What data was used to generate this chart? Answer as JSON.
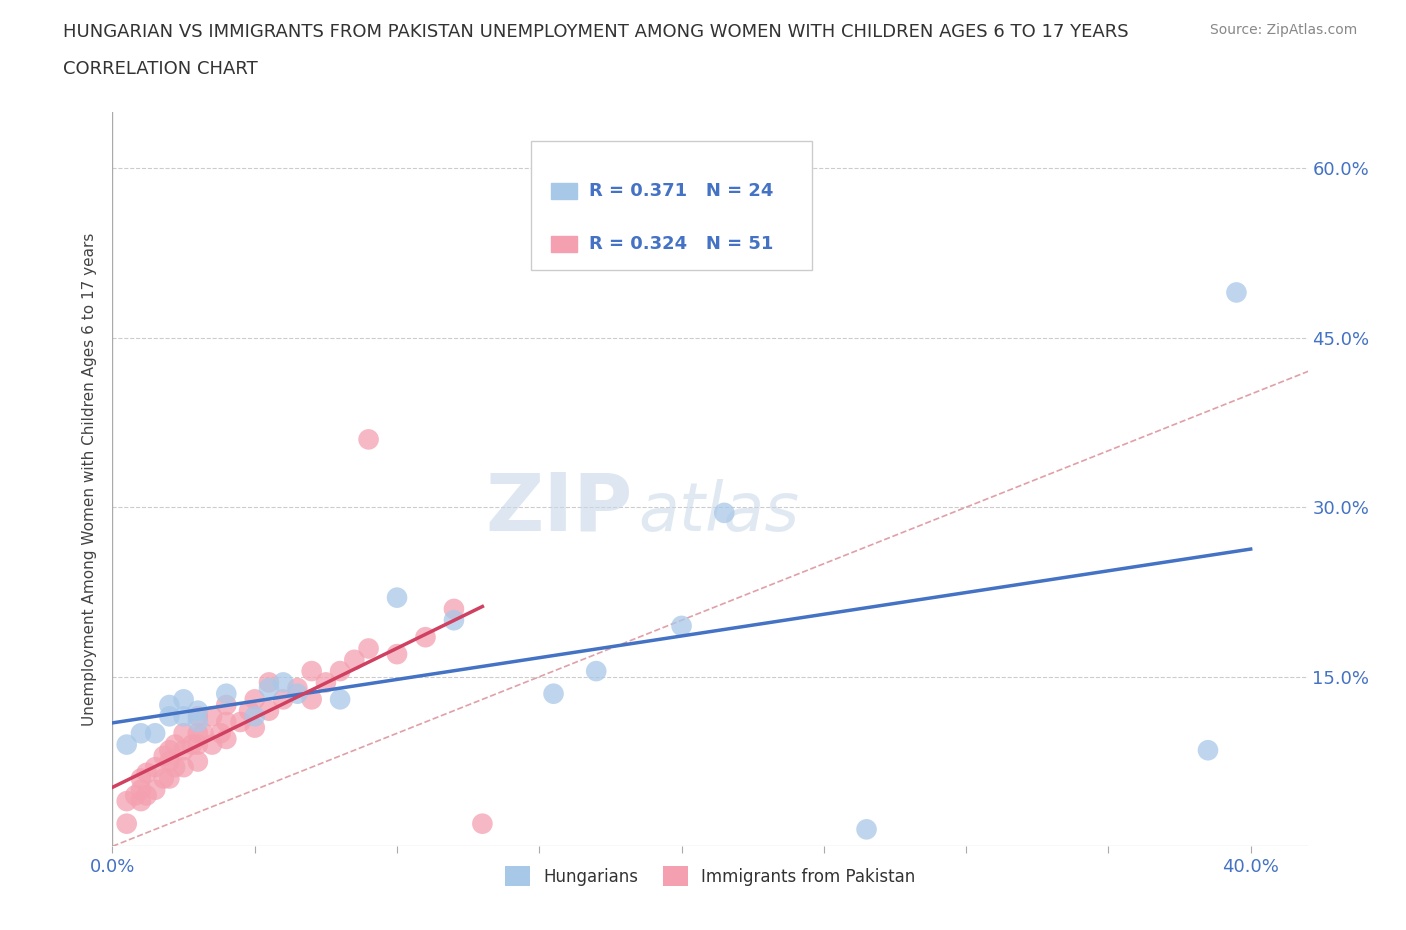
{
  "title_line1": "HUNGARIAN VS IMMIGRANTS FROM PAKISTAN UNEMPLOYMENT AMONG WOMEN WITH CHILDREN AGES 6 TO 17 YEARS",
  "title_line2": "CORRELATION CHART",
  "source": "Source: ZipAtlas.com",
  "ylabel": "Unemployment Among Women with Children Ages 6 to 17 years",
  "xlim": [
    0.0,
    0.42
  ],
  "ylim": [
    0.0,
    0.65
  ],
  "xtick_positions": [
    0.0,
    0.05,
    0.1,
    0.15,
    0.2,
    0.25,
    0.3,
    0.35,
    0.4
  ],
  "ytick_positions": [
    0.0,
    0.15,
    0.3,
    0.45,
    0.6
  ],
  "ytick_labels": [
    "",
    "15.0%",
    "30.0%",
    "45.0%",
    "60.0%"
  ],
  "hungarian_R": 0.371,
  "hungarian_N": 24,
  "pakistan_R": 0.324,
  "pakistan_N": 51,
  "legend_label1": "Hungarians",
  "legend_label2": "Immigrants from Pakistan",
  "color_hungarian": "#a8c8e8",
  "color_pakistan": "#f4a0b0",
  "color_trendline_hungarian": "#4472c4",
  "color_trendline_pakistan": "#d04060",
  "color_diagonal": "#e0a0a8",
  "watermark_zip": "ZIP",
  "watermark_atlas": "atlas",
  "background_color": "#ffffff",
  "hungarian_x": [
    0.005,
    0.01,
    0.015,
    0.02,
    0.02,
    0.025,
    0.025,
    0.03,
    0.03,
    0.04,
    0.05,
    0.055,
    0.06,
    0.065,
    0.08,
    0.1,
    0.12,
    0.155,
    0.17,
    0.2,
    0.215,
    0.265,
    0.385,
    0.395
  ],
  "hungarian_y": [
    0.09,
    0.1,
    0.1,
    0.115,
    0.125,
    0.115,
    0.13,
    0.11,
    0.12,
    0.135,
    0.115,
    0.14,
    0.145,
    0.135,
    0.13,
    0.22,
    0.2,
    0.135,
    0.155,
    0.195,
    0.295,
    0.015,
    0.085,
    0.49
  ],
  "pakistan_x": [
    0.005,
    0.005,
    0.008,
    0.01,
    0.01,
    0.01,
    0.012,
    0.012,
    0.015,
    0.015,
    0.018,
    0.018,
    0.02,
    0.02,
    0.02,
    0.022,
    0.022,
    0.025,
    0.025,
    0.025,
    0.028,
    0.03,
    0.03,
    0.03,
    0.03,
    0.032,
    0.035,
    0.035,
    0.038,
    0.04,
    0.04,
    0.04,
    0.045,
    0.048,
    0.05,
    0.05,
    0.055,
    0.055,
    0.06,
    0.065,
    0.07,
    0.07,
    0.075,
    0.08,
    0.085,
    0.09,
    0.09,
    0.1,
    0.11,
    0.12,
    0.13
  ],
  "pakistan_y": [
    0.02,
    0.04,
    0.045,
    0.04,
    0.05,
    0.06,
    0.045,
    0.065,
    0.05,
    0.07,
    0.06,
    0.08,
    0.06,
    0.075,
    0.085,
    0.07,
    0.09,
    0.07,
    0.085,
    0.1,
    0.09,
    0.075,
    0.09,
    0.1,
    0.115,
    0.1,
    0.09,
    0.115,
    0.1,
    0.095,
    0.11,
    0.125,
    0.11,
    0.12,
    0.105,
    0.13,
    0.12,
    0.145,
    0.13,
    0.14,
    0.13,
    0.155,
    0.145,
    0.155,
    0.165,
    0.175,
    0.36,
    0.17,
    0.185,
    0.21,
    0.02
  ]
}
